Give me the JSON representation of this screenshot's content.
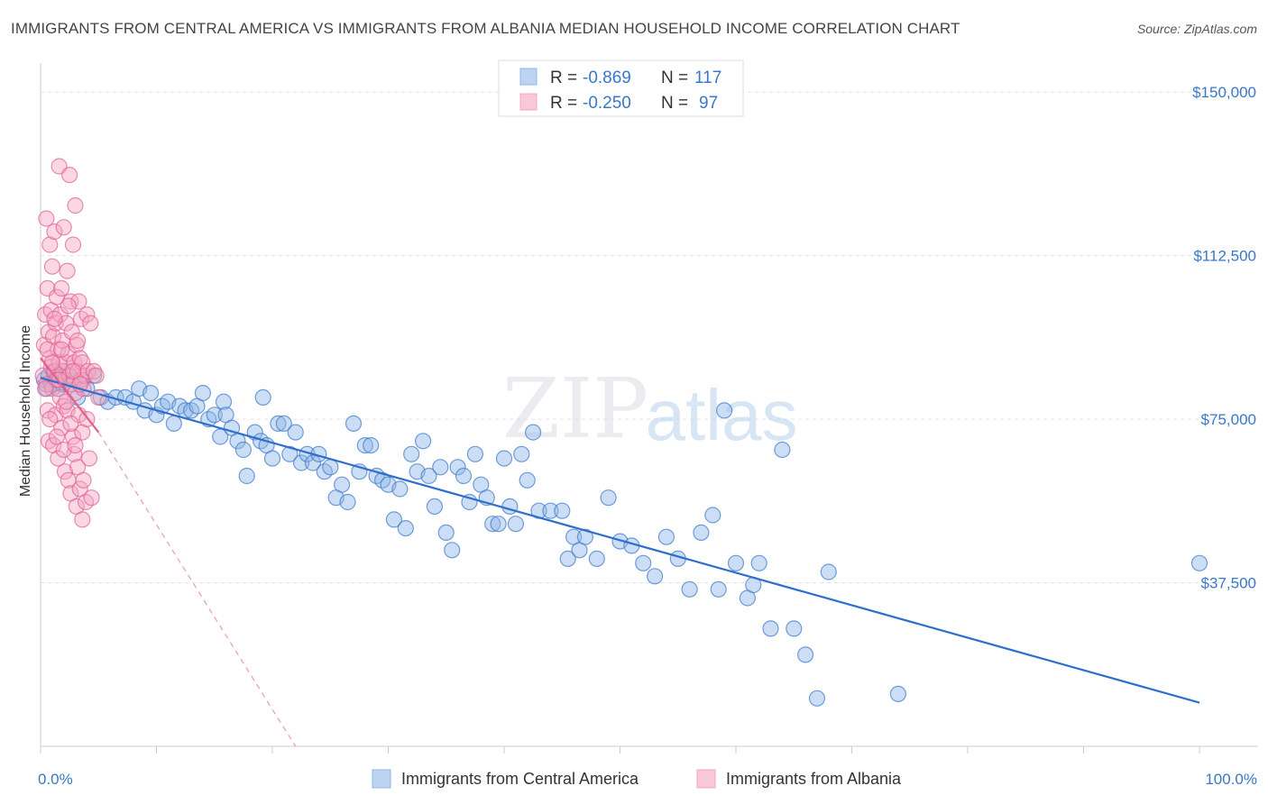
{
  "header": {
    "title": "IMMIGRANTS FROM CENTRAL AMERICA VS IMMIGRANTS FROM ALBANIA MEDIAN HOUSEHOLD INCOME CORRELATION CHART",
    "source": "Source: ZipAtlas.com"
  },
  "watermark": {
    "zip": "ZIP",
    "atlas": "atlas"
  },
  "legend_top": {
    "rows": [
      {
        "r_label": "R =",
        "r_value": "-0.869",
        "n_label": "N =",
        "n_value": "117",
        "color": "#8fb6e8"
      },
      {
        "r_label": "R =",
        "r_value": "-0.250",
        "n_label": "N =",
        "n_value": "97",
        "color": "#f4a6c0"
      }
    ]
  },
  "legend_bottom": {
    "items": [
      {
        "label": "Immigrants from Central America",
        "color": "#8fb6e8"
      },
      {
        "label": "Immigrants from Albania",
        "color": "#f4a6c0"
      }
    ]
  },
  "chart_data": {
    "type": "scatter",
    "title": "IMMIGRANTS FROM CENTRAL AMERICA VS IMMIGRANTS FROM ALBANIA MEDIAN HOUSEHOLD INCOME CORRELATION CHART",
    "xlabel": "",
    "ylabel": "Median Household Income",
    "xlim": [
      0,
      100
    ],
    "ylim": [
      0,
      155000
    ],
    "x_tick_labels": [
      "0.0%",
      "100.0%"
    ],
    "y_ticks": [
      37500,
      75000,
      112500,
      150000
    ],
    "y_tick_labels": [
      "$37,500",
      "$75,000",
      "$112,500",
      "$150,000"
    ],
    "grid": true,
    "legend_placement": "top-center",
    "series": [
      {
        "name": "Immigrants from Central America",
        "color": "#3a78c8",
        "fill": "#8fb6e8",
        "r": -0.869,
        "n": 117,
        "trend": {
          "x": [
            0,
            100
          ],
          "y": [
            84500,
            10000
          ]
        },
        "points": [
          [
            0.3,
            84
          ],
          [
            0.5,
            82
          ],
          [
            0.7,
            85
          ],
          [
            0.9,
            83
          ],
          [
            1.1,
            86
          ],
          [
            1.3,
            84
          ],
          [
            1.5,
            82
          ],
          [
            1.7,
            85
          ],
          [
            1.9,
            83
          ],
          [
            2.1,
            84
          ],
          [
            2.3,
            86
          ],
          [
            2.5,
            83
          ],
          [
            2.8,
            84
          ],
          [
            3.2,
            80
          ],
          [
            3.6,
            84
          ],
          [
            4.0,
            82
          ],
          [
            4.6,
            85
          ],
          [
            5.2,
            80
          ],
          [
            5.8,
            79
          ],
          [
            6.5,
            80
          ],
          [
            7.3,
            80
          ],
          [
            8.0,
            79
          ],
          [
            8.5,
            82
          ],
          [
            9.0,
            77
          ],
          [
            9.5,
            81
          ],
          [
            10.0,
            76
          ],
          [
            10.5,
            78
          ],
          [
            11.0,
            79
          ],
          [
            11.5,
            74
          ],
          [
            12.0,
            78
          ],
          [
            12.5,
            77
          ],
          [
            13.0,
            77
          ],
          [
            13.5,
            78
          ],
          [
            14.0,
            81
          ],
          [
            14.5,
            75
          ],
          [
            15.0,
            76
          ],
          [
            15.5,
            71
          ],
          [
            15.8,
            79
          ],
          [
            16.0,
            76
          ],
          [
            16.5,
            73
          ],
          [
            17.0,
            70
          ],
          [
            17.5,
            68
          ],
          [
            17.8,
            62
          ],
          [
            18.5,
            72
          ],
          [
            19.0,
            70
          ],
          [
            19.2,
            80
          ],
          [
            19.5,
            69
          ],
          [
            20.0,
            66
          ],
          [
            20.5,
            74
          ],
          [
            21.0,
            74
          ],
          [
            21.5,
            67
          ],
          [
            22.0,
            72
          ],
          [
            22.5,
            65
          ],
          [
            23.0,
            67
          ],
          [
            23.5,
            65
          ],
          [
            24.0,
            67
          ],
          [
            24.5,
            63
          ],
          [
            25.0,
            64
          ],
          [
            25.5,
            57
          ],
          [
            26.0,
            60
          ],
          [
            26.5,
            56
          ],
          [
            27.0,
            74
          ],
          [
            27.5,
            63
          ],
          [
            28.0,
            69
          ],
          [
            28.5,
            69
          ],
          [
            29.0,
            62
          ],
          [
            29.5,
            61
          ],
          [
            30.0,
            60
          ],
          [
            30.5,
            52
          ],
          [
            31.0,
            59
          ],
          [
            31.5,
            50
          ],
          [
            32.0,
            67
          ],
          [
            32.5,
            63
          ],
          [
            33.0,
            70
          ],
          [
            33.5,
            62
          ],
          [
            34.0,
            55
          ],
          [
            34.5,
            64
          ],
          [
            35.0,
            49
          ],
          [
            35.5,
            45
          ],
          [
            36.0,
            64
          ],
          [
            36.5,
            62
          ],
          [
            37.0,
            56
          ],
          [
            37.5,
            67
          ],
          [
            38.0,
            60
          ],
          [
            38.5,
            57
          ],
          [
            39.0,
            51
          ],
          [
            39.5,
            51
          ],
          [
            40.0,
            66
          ],
          [
            40.5,
            55
          ],
          [
            41.0,
            51
          ],
          [
            41.5,
            67
          ],
          [
            42.0,
            61
          ],
          [
            42.5,
            72
          ],
          [
            43.0,
            54
          ],
          [
            44.0,
            54
          ],
          [
            45.0,
            54
          ],
          [
            45.5,
            43
          ],
          [
            46.0,
            48
          ],
          [
            46.5,
            45
          ],
          [
            47.0,
            48
          ],
          [
            48.0,
            43
          ],
          [
            49.0,
            57
          ],
          [
            50.0,
            47
          ],
          [
            51.0,
            46
          ],
          [
            52.0,
            42
          ],
          [
            53.0,
            39
          ],
          [
            54.0,
            48
          ],
          [
            55.0,
            43
          ],
          [
            56.0,
            36
          ],
          [
            57.0,
            49
          ],
          [
            58.0,
            53
          ],
          [
            58.5,
            36
          ],
          [
            59.0,
            77
          ],
          [
            60.0,
            42
          ],
          [
            61.0,
            34
          ],
          [
            61.5,
            37
          ],
          [
            62.0,
            42
          ],
          [
            63.0,
            27
          ],
          [
            64.0,
            68
          ],
          [
            65.0,
            27
          ],
          [
            66.0,
            21
          ],
          [
            67.0,
            11
          ],
          [
            68.0,
            40
          ],
          [
            74.0,
            12
          ],
          [
            100.0,
            42
          ]
        ]
      },
      {
        "name": "Immigrants from Albania",
        "color": "#e0608e",
        "fill": "#f4a6c0",
        "r": -0.25,
        "n": 97,
        "trend": {
          "x": [
            0,
            5
          ],
          "y": [
            89000,
            72000
          ]
        },
        "trend_dashed": {
          "x": [
            5,
            22
          ],
          "y": [
            72000,
            0
          ]
        },
        "points": [
          [
            0.2,
            85
          ],
          [
            0.3,
            92
          ],
          [
            0.4,
            99
          ],
          [
            0.5,
            121
          ],
          [
            0.5,
            83
          ],
          [
            0.6,
            105
          ],
          [
            0.6,
            77
          ],
          [
            0.7,
            95
          ],
          [
            0.7,
            70
          ],
          [
            0.8,
            89
          ],
          [
            0.8,
            115
          ],
          [
            0.9,
            87
          ],
          [
            0.9,
            100
          ],
          [
            1.0,
            110
          ],
          [
            1.0,
            82
          ],
          [
            1.1,
            94
          ],
          [
            1.1,
            69
          ],
          [
            1.2,
            86
          ],
          [
            1.2,
            118
          ],
          [
            1.3,
            97
          ],
          [
            1.3,
            76
          ],
          [
            1.4,
            84
          ],
          [
            1.4,
            103
          ],
          [
            1.5,
            91
          ],
          [
            1.5,
            66
          ],
          [
            1.6,
            88
          ],
          [
            1.6,
            133
          ],
          [
            1.7,
            80
          ],
          [
            1.7,
            99
          ],
          [
            1.8,
            105
          ],
          [
            1.8,
            73
          ],
          [
            1.9,
            86
          ],
          [
            1.9,
            93
          ],
          [
            2.0,
            119
          ],
          [
            2.0,
            78
          ],
          [
            2.1,
            84
          ],
          [
            2.1,
            63
          ],
          [
            2.2,
            97
          ],
          [
            2.2,
            88
          ],
          [
            2.3,
            109
          ],
          [
            2.3,
            77
          ],
          [
            2.4,
            90
          ],
          [
            2.4,
            61
          ],
          [
            2.5,
            131
          ],
          [
            2.5,
            85
          ],
          [
            2.6,
            102
          ],
          [
            2.6,
            58
          ],
          [
            2.7,
            83
          ],
          [
            2.7,
            95
          ],
          [
            2.8,
            71
          ],
          [
            2.8,
            115
          ],
          [
            2.9,
            88
          ],
          [
            2.9,
            67
          ],
          [
            3.0,
            124
          ],
          [
            3.0,
            81
          ],
          [
            3.1,
            92
          ],
          [
            3.1,
            55
          ],
          [
            3.2,
            86
          ],
          [
            3.2,
            64
          ],
          [
            3.3,
            102
          ],
          [
            3.3,
            76
          ],
          [
            3.4,
            89
          ],
          [
            3.4,
            59
          ],
          [
            3.5,
            84
          ],
          [
            3.5,
            98
          ],
          [
            3.6,
            72
          ],
          [
            3.6,
            88
          ],
          [
            3.7,
            82
          ],
          [
            3.7,
            61
          ],
          [
            3.8,
            85
          ],
          [
            3.9,
            56
          ],
          [
            4.0,
            99
          ],
          [
            4.0,
            75
          ],
          [
            4.1,
            86
          ],
          [
            4.2,
            66
          ],
          [
            4.3,
            97
          ],
          [
            4.4,
            57
          ],
          [
            4.6,
            86
          ],
          [
            4.8,
            85
          ],
          [
            5.0,
            80
          ],
          [
            0.4,
            82
          ],
          [
            0.6,
            91
          ],
          [
            0.8,
            75
          ],
          [
            1.0,
            88
          ],
          [
            1.2,
            98
          ],
          [
            1.4,
            71
          ],
          [
            1.6,
            84
          ],
          [
            1.8,
            91
          ],
          [
            2.0,
            68
          ],
          [
            2.2,
            79
          ],
          [
            2.4,
            101
          ],
          [
            2.6,
            74
          ],
          [
            2.8,
            86
          ],
          [
            3.0,
            69
          ],
          [
            3.2,
            93
          ],
          [
            3.4,
            83
          ],
          [
            3.6,
            52
          ]
        ]
      }
    ]
  }
}
